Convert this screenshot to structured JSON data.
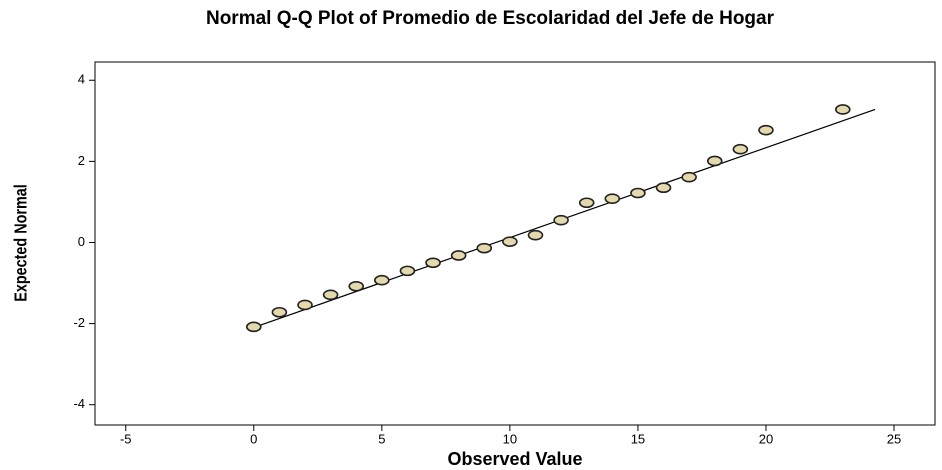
{
  "chart_data": {
    "type": "scatter",
    "title": "Normal Q-Q Plot of Promedio de Escolaridad del Jefe de Hogar",
    "x_label": "Observed Value",
    "y_label": "Expected Normal",
    "x": [
      0,
      1,
      2,
      3,
      4,
      5,
      6,
      7,
      8,
      9,
      10,
      11,
      12,
      13,
      14,
      15,
      16,
      17,
      18,
      19,
      20,
      23
    ],
    "values": [
      -2.08,
      -1.72,
      -1.54,
      -1.29,
      -1.08,
      -0.93,
      -0.7,
      -0.5,
      -0.32,
      -0.14,
      0.02,
      0.18,
      0.55,
      0.98,
      1.08,
      1.22,
      1.35,
      1.61,
      2.01,
      2.3,
      2.77,
      3.28
    ],
    "color": "#e3d9ac",
    "reference_line": {
      "x": [
        0.2,
        24.26
      ],
      "y": [
        -2.05,
        3.28
      ]
    },
    "xlim": [
      -6.2,
      26.6
    ],
    "ylim": [
      -4.5,
      4.45
    ],
    "xticks": [
      -5,
      0,
      5,
      10,
      15,
      20,
      25
    ],
    "yticks": [
      -4,
      -2,
      0,
      2,
      4
    ]
  }
}
